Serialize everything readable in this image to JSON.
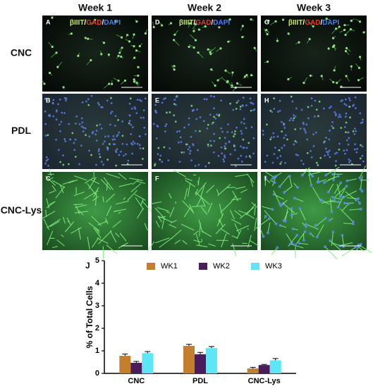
{
  "columns": [
    "Week 1",
    "Week 2",
    "Week 3"
  ],
  "rows": [
    "CNC",
    "PDL",
    "CNC-Lys"
  ],
  "panels": [
    "A",
    "D",
    "G",
    "B",
    "E",
    "H",
    "C",
    "F",
    "I"
  ],
  "stain_labels": [
    "βIIIT",
    "/",
    "GAD",
    "/",
    "DAPI"
  ],
  "stain_colors": [
    "#c9e26a",
    "#ffffff",
    "#e0402c",
    "#ffffff",
    "#4f7de8"
  ],
  "chart_label": "J",
  "chart_data": {
    "type": "bar",
    "ylabel": "% of Total Cells",
    "categories": [
      "CNC",
      "PDL",
      "CNC-Lys"
    ],
    "series": [
      {
        "name": "WK1",
        "color": "#c47f2c",
        "values": [
          0.78,
          1.22,
          0.22
        ],
        "errors": [
          0.08,
          0.07,
          0.05
        ]
      },
      {
        "name": "WK2",
        "color": "#4a1c5c",
        "values": [
          0.47,
          0.85,
          0.37
        ],
        "errors": [
          0.06,
          0.08,
          0.03
        ]
      },
      {
        "name": "WK3",
        "color": "#5fe6f6",
        "values": [
          0.9,
          1.12,
          0.58
        ],
        "errors": [
          0.07,
          0.07,
          0.08
        ]
      }
    ],
    "ylim": [
      0,
      5
    ],
    "yticks": [
      0,
      1,
      2,
      3,
      4,
      5
    ],
    "legend": "top"
  }
}
